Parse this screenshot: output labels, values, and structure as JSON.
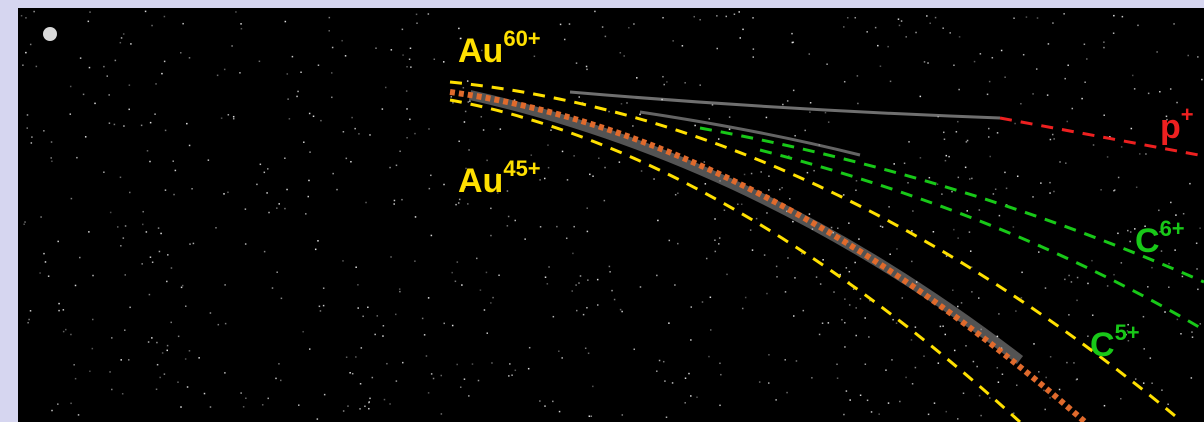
{
  "labels": [
    {
      "base": "Au",
      "charge": "60+"
    },
    {
      "base": "Au",
      "charge": "45+"
    },
    {
      "base": "C",
      "charge": "6+"
    },
    {
      "base": "C",
      "charge": "5+"
    },
    {
      "base": "p",
      "charge": "+"
    }
  ]
}
